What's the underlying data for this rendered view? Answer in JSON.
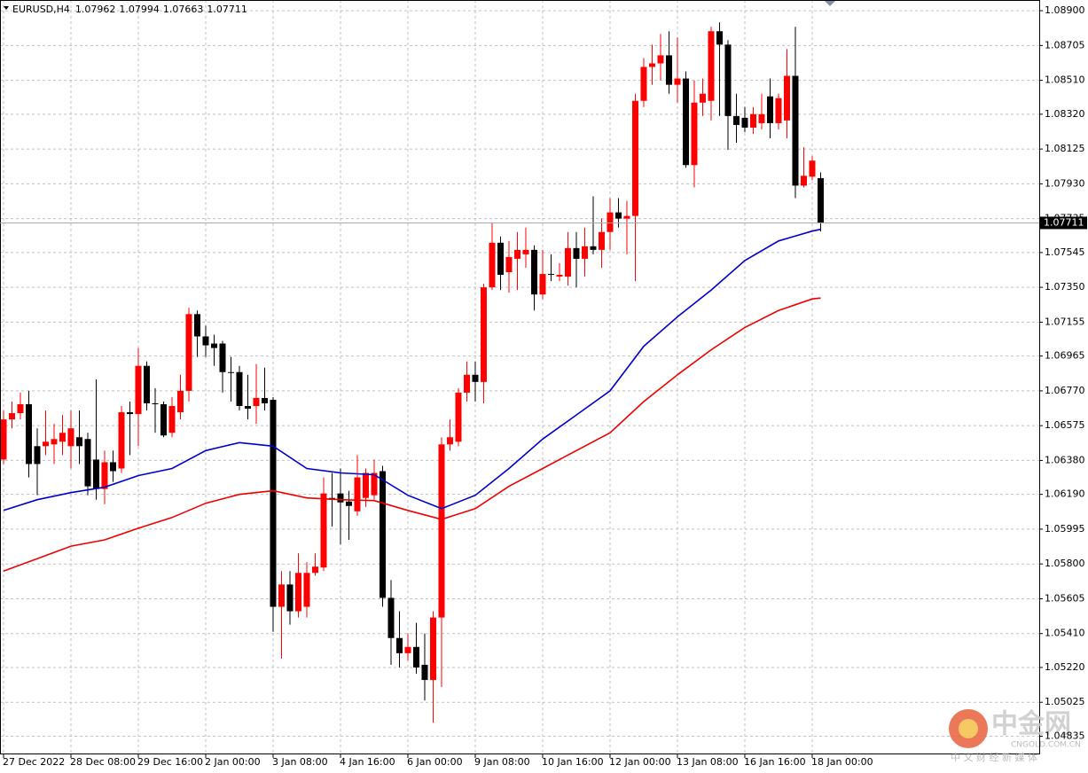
{
  "chart_data": {
    "type": "candlestick",
    "symbol": "EURUSD,H4",
    "up_color": "#ff0000",
    "down_color": "#000000",
    "open": [
      1.06385,
      1.0661,
      1.06645,
      1.06695,
      1.0646,
      1.0646,
      1.0647,
      1.06485,
      1.0646,
      1.0651,
      1.065,
      1.06385,
      1.0622,
      1.0637,
      1.06335,
      1.0665,
      1.0664,
      1.0691,
      1.067,
      1.06695,
      1.06535,
      1.0665,
      1.0677,
      1.072,
      1.07075,
      1.07035,
      1.07035,
      1.06875,
      1.06875,
      1.06685,
      1.06685,
      1.0673,
      1.0672,
      1.0556,
      1.05685,
      1.05535,
      1.0556,
      1.0575,
      1.0578,
      1.0617,
      1.06195,
      1.0615,
      1.06095,
      1.0617,
      1.06185,
      1.0632,
      1.0561,
      1.05385,
      1.053,
      1.05335,
      1.05235,
      1.0515,
      1.055,
      1.0647,
      1.06485,
      1.0676,
      1.0686,
      1.0682,
      1.0735,
      1.076,
      1.07435,
      1.0751,
      1.07535,
      1.0756,
      1.0731,
      1.07425,
      1.0741,
      1.0741,
      1.0757,
      1.0751,
      1.0758,
      1.0756,
      1.0766,
      1.0777,
      1.07735,
      1.0775,
      1.08395,
      1.08585,
      1.08605,
      1.0865,
      1.08485,
      1.0852,
      1.08035,
      1.08385,
      1.08395,
      1.08785,
      1.0871,
      1.0831,
      1.083,
      1.08245,
      1.0827,
      1.0842,
      1.0827,
      1.08285,
      1.08535,
      1.0792,
      1.0797,
      1.07962
    ],
    "high": [
      1.0666,
      1.0671,
      1.0676,
      1.0677,
      1.0656,
      1.0666,
      1.06585,
      1.06635,
      1.0666,
      1.0666,
      1.06535,
      1.06835,
      1.06435,
      1.06435,
      1.06685,
      1.0671,
      1.0701,
      1.06935,
      1.06785,
      1.0671,
      1.06735,
      1.0686,
      1.07235,
      1.0722,
      1.07135,
      1.07085,
      1.0705,
      1.0696,
      1.0691,
      1.0686,
      1.0692,
      1.069,
      1.06735,
      1.0576,
      1.0576,
      1.0586,
      1.0581,
      1.0586,
      1.06285,
      1.0631,
      1.06335,
      1.0621,
      1.0641,
      1.06335,
      1.06385,
      1.0635,
      1.0571,
      1.05535,
      1.0541,
      1.0547,
      1.0541,
      1.05535,
      1.0651,
      1.0661,
      1.06785,
      1.06935,
      1.06935,
      1.0737,
      1.0771,
      1.07635,
      1.0761,
      1.0766,
      1.07685,
      1.07585,
      1.0756,
      1.07535,
      1.07485,
      1.0766,
      1.0766,
      1.07685,
      1.0786,
      1.07735,
      1.0785,
      1.0785,
      1.07835,
      1.08435,
      1.08635,
      1.0871,
      1.0877,
      1.08785,
      1.0875,
      1.0856,
      1.0851,
      1.0852,
      1.0881,
      1.08835,
      1.08735,
      1.08435,
      1.0836,
      1.0836,
      1.08435,
      1.0852,
      1.08435,
      1.08685,
      1.0881,
      1.08135,
      1.08085,
      1.07994
    ],
    "low": [
      1.0636,
      1.0656,
      1.0661,
      1.06285,
      1.06185,
      1.0641,
      1.0636,
      1.0641,
      1.06335,
      1.0636,
      1.06185,
      1.0616,
      1.06135,
      1.0626,
      1.0631,
      1.0641,
      1.0646,
      1.0666,
      1.06535,
      1.0651,
      1.0651,
      1.0661,
      1.0671,
      1.0696,
      1.0696,
      1.0691,
      1.0676,
      1.0671,
      1.0666,
      1.0661,
      1.06585,
      1.0666,
      1.0542,
      1.0527,
      1.0546,
      1.055,
      1.055,
      1.05735,
      1.0576,
      1.0601,
      1.0591,
      1.05935,
      1.0607,
      1.0612,
      1.0616,
      1.0556,
      1.05235,
      1.0522,
      1.0526,
      1.05185,
      1.05035,
      1.0491,
      1.0511,
      1.06435,
      1.0646,
      1.0671,
      1.0671,
      1.067,
      1.07335,
      1.07335,
      1.0732,
      1.07335,
      1.0746,
      1.0722,
      1.07285,
      1.07385,
      1.07385,
      1.0736,
      1.0735,
      1.0741,
      1.07535,
      1.0746,
      1.0756,
      1.07685,
      1.07535,
      1.07385,
      1.0836,
      1.08485,
      1.0851,
      1.08435,
      1.08385,
      1.0802,
      1.0791,
      1.0831,
      1.08285,
      1.0831,
      1.0812,
      1.0816,
      1.0822,
      1.0821,
      1.08235,
      1.08185,
      1.08235,
      1.08185,
      1.0785,
      1.0791,
      1.0795,
      1.07663
    ],
    "close": [
      1.0661,
      1.06645,
      1.06695,
      1.0636,
      1.0636,
      1.06485,
      1.065,
      1.06535,
      1.0656,
      1.0646,
      1.06235,
      1.0622,
      1.0637,
      1.0632,
      1.0665,
      1.0664,
      1.0691,
      1.067,
      1.06695,
      1.0652,
      1.06685,
      1.0677,
      1.072,
      1.07075,
      1.07025,
      1.0701,
      1.06875,
      1.0687,
      1.06685,
      1.0667,
      1.0673,
      1.067,
      1.0556,
      1.05685,
      1.05535,
      1.0575,
      1.0575,
      1.05785,
      1.06195,
      1.0616,
      1.06145,
      1.06125,
      1.06285,
      1.0631,
      1.0631,
      1.0561,
      1.05385,
      1.053,
      1.05335,
      1.0522,
      1.0515,
      1.055,
      1.0647,
      1.0651,
      1.0676,
      1.0686,
      1.0682,
      1.0735,
      1.076,
      1.0742,
      1.0752,
      1.0756,
      1.0756,
      1.0731,
      1.07425,
      1.0742,
      1.0742,
      1.0757,
      1.0751,
      1.0758,
      1.0756,
      1.0766,
      1.0777,
      1.07735,
      1.0775,
      1.08395,
      1.08585,
      1.08605,
      1.0865,
      1.08485,
      1.0852,
      1.08035,
      1.08385,
      1.08435,
      1.08785,
      1.0871,
      1.0831,
      1.0826,
      1.08245,
      1.0832,
      1.0832,
      1.0827,
      1.0841,
      1.08535,
      1.0792,
      1.07975,
      1.0806,
      1.07711
    ],
    "series": [
      {
        "color": "#0000cd",
        "x": [
          0,
          4,
          8,
          12,
          16,
          20,
          24,
          28,
          32,
          36,
          40,
          44,
          48,
          52,
          56,
          60,
          64,
          68,
          72,
          76,
          80,
          84,
          88,
          92,
          96,
          97
        ],
        "values": [
          1.061,
          1.0616,
          1.062,
          1.0623,
          1.06295,
          1.06335,
          1.06435,
          1.0648,
          1.0646,
          1.06335,
          1.0631,
          1.063,
          1.06185,
          1.0611,
          1.06185,
          1.06335,
          1.065,
          1.06635,
          1.0677,
          1.0702,
          1.07185,
          1.07335,
          1.075,
          1.0761,
          1.07665,
          1.07675
        ]
      },
      {
        "color": "#ee0000",
        "x": [
          0,
          4,
          8,
          12,
          16,
          20,
          24,
          28,
          32,
          36,
          40,
          44,
          48,
          52,
          56,
          60,
          64,
          68,
          72,
          76,
          80,
          84,
          88,
          92,
          96,
          97
        ],
        "values": [
          1.0576,
          1.0583,
          1.059,
          1.05935,
          1.06,
          1.0606,
          1.0614,
          1.0619,
          1.0621,
          1.0617,
          1.0616,
          1.06155,
          1.061,
          1.0605,
          1.0611,
          1.06235,
          1.06335,
          1.06435,
          1.06535,
          1.0671,
          1.0686,
          1.07,
          1.07125,
          1.0722,
          1.07285,
          1.0729
        ]
      }
    ],
    "xlim": [
      -0.42,
      122.95
    ],
    "xticks": [
      {
        "value": 0,
        "label": "27 Dec 2022"
      },
      {
        "value": 8,
        "label": "28 Dec 08:00"
      },
      {
        "value": 16,
        "label": "29 Dec 16:00"
      },
      {
        "value": 24,
        "label": "2 Jan 00:00"
      },
      {
        "value": 32,
        "label": "3 Jan 08:00"
      },
      {
        "value": 40,
        "label": "4 Jan 16:00"
      },
      {
        "value": 48,
        "label": "6 Jan 00:00"
      },
      {
        "value": 56,
        "label": "9 Jan 08:00"
      },
      {
        "value": 64,
        "label": "10 Jan 16:00"
      },
      {
        "value": 72,
        "label": "12 Jan 00:00"
      },
      {
        "value": 80,
        "label": "13 Jan 08:00"
      },
      {
        "value": 88,
        "label": "16 Jan 16:00"
      },
      {
        "value": 96,
        "label": "18 Jan 00:00"
      }
    ],
    "ylim": [
      1.04738,
      1.0896
    ],
    "yticks": [
      {
        "value": 1.089,
        "label": "1.08900"
      },
      {
        "value": 1.08705,
        "label": "1.08705"
      },
      {
        "value": 1.0851,
        "label": "1.08510"
      },
      {
        "value": 1.0832,
        "label": "1.08320"
      },
      {
        "value": 1.08125,
        "label": "1.08125"
      },
      {
        "value": 1.0793,
        "label": "1.07930"
      },
      {
        "value": 1.07735,
        "label": "1.07735"
      },
      {
        "value": 1.07545,
        "label": "1.07545"
      },
      {
        "value": 1.0735,
        "label": "1.07350"
      },
      {
        "value": 1.07155,
        "label": "1.07155"
      },
      {
        "value": 1.06965,
        "label": "1.06965"
      },
      {
        "value": 1.0677,
        "label": "1.06770"
      },
      {
        "value": 1.06575,
        "label": "1.06575"
      },
      {
        "value": 1.0638,
        "label": "1.06380"
      },
      {
        "value": 1.0619,
        "label": "1.06190"
      },
      {
        "value": 1.05995,
        "label": "1.05995"
      },
      {
        "value": 1.058,
        "label": "1.05800"
      },
      {
        "value": 1.05605,
        "label": "1.05605"
      },
      {
        "value": 1.0541,
        "label": "1.05410"
      },
      {
        "value": 1.0522,
        "label": "1.05220"
      },
      {
        "value": 1.05025,
        "label": "1.05025"
      },
      {
        "value": 1.04835,
        "label": "1.04835"
      }
    ],
    "grid": true,
    "watermark": {
      "name": "中金网",
      "site": "CNGOLD.COM.CN",
      "slogan": "中 文 财 经 新 媒 体"
    }
  }
}
